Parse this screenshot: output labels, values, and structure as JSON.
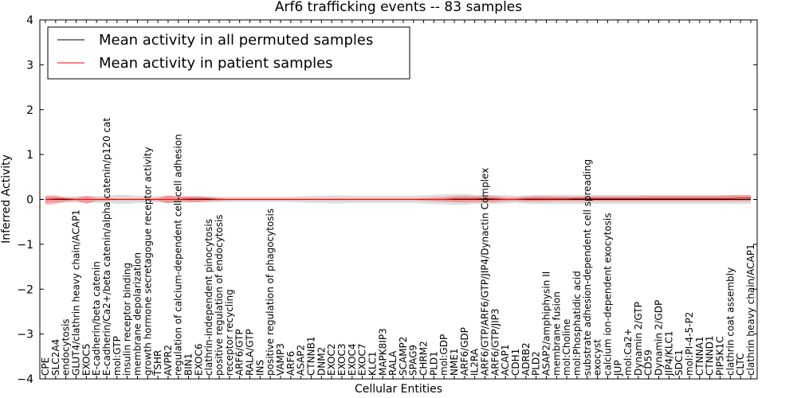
{
  "chart_data": {
    "type": "line",
    "title": "Arf6 trafficking events -- 83 samples",
    "xlabel": "Cellular Entities",
    "ylabel": "Inferred Activity",
    "ylim": [
      -4,
      4
    ],
    "yticks": [
      -4,
      -3,
      -2,
      -1,
      0,
      1,
      2,
      3,
      4
    ],
    "ytick_labels": [
      "−4",
      "−3",
      "−2",
      "−1",
      "0",
      "1",
      "2",
      "3",
      "4"
    ],
    "grid": false,
    "legend_position": "top-left",
    "categories": [
      "CPE",
      "SLC2A4",
      "endocytosis",
      "GLUT4/clathrin heavy chain/ACAP1",
      "EXOC5",
      "E-cadherin/beta catenin",
      "E-cadherin/Ca2+/beta catenin/alpha catenin/p120 cat",
      "mol:GTP",
      "insulin receptor binding",
      "membrane depolarization",
      "growth hormone secretagogue receptor activity",
      "TSHR",
      "AVPR2",
      "regulation of calcium-dependent cell-cell adhesion",
      "BIN1",
      "EXOC6",
      "clathrin-independent pinocytosis",
      "positive regulation of endocytosis",
      "receptor recycling",
      "ARF6/GTP",
      "RALA/GTP",
      "INS",
      "positive regulation of phagocytosis",
      "VAMP3",
      "ARF6",
      "ASAP2",
      "CTNNB1",
      "DNM2",
      "EXOC2",
      "EXOC3",
      "EXOC4",
      "EXOC7",
      "KLC1",
      "MAPK8IP3",
      "RALA",
      "SCAMP2",
      "SPAG9",
      "CHRM2",
      "PLD1",
      "mol:GDP",
      "NME1",
      "ARF6/GDP",
      "IL2RA",
      "ARF6/GTP/ARF6/GTP/JIP4/Dynactin Complex",
      "ARF6/GTP/JIP3",
      "ACAP1",
      "CDH1",
      "ADRB2",
      "PLD2",
      "ASAP2/amphiphysin II",
      "membrane fusion",
      "mol:Choline",
      "mol:Phosphatidic acid",
      "substrate adhesion-dependent cell spreading",
      "exocyst",
      "calcium ion-dependent exocytosis",
      "JUP",
      "mol:Ca2+",
      "Dynamin 2/GTP",
      "CD59",
      "Dynamin 2/GDP",
      "JIP4/KLC1",
      "SDC1",
      "mol:PI-4-5-P2",
      "CTNNA1",
      "CTNND1",
      "PIP5K1C",
      "clathrin coat assembly",
      "CLTC",
      "clathrin heavy chain/ACAP1"
    ],
    "series": [
      {
        "name": "Mean activity in all permuted samples",
        "color": "#000000",
        "values": [
          0,
          0,
          0,
          0,
          0,
          0,
          0,
          0,
          0,
          0,
          0,
          0,
          0,
          0,
          0,
          0,
          0,
          0,
          0,
          0,
          0,
          0,
          0,
          0,
          0,
          0,
          0,
          0,
          0,
          0,
          0,
          0,
          0,
          0,
          0,
          0,
          0,
          0,
          0,
          0,
          0,
          0,
          0,
          0,
          0,
          0,
          0,
          0,
          0,
          0,
          0,
          0,
          0,
          0,
          0,
          0,
          0,
          0,
          0,
          0,
          0,
          0,
          0,
          0,
          0,
          0,
          0,
          0,
          0,
          0
        ],
        "band_lower": [
          -0.06,
          -0.06,
          -0.07,
          -0.07,
          -0.07,
          -0.08,
          -0.08,
          -0.1,
          -0.1,
          -0.08,
          -0.07,
          -0.07,
          -0.08,
          -0.08,
          -0.07,
          -0.07,
          -0.07,
          -0.06,
          -0.06,
          -0.06,
          -0.06,
          -0.06,
          -0.06,
          -0.06,
          -0.06,
          -0.07,
          -0.08,
          -0.08,
          -0.09,
          -0.09,
          -0.08,
          -0.08,
          -0.08,
          -0.08,
          -0.08,
          -0.08,
          -0.08,
          -0.09,
          -0.1,
          -0.11,
          -0.12,
          -0.12,
          -0.1,
          -0.1,
          -0.1,
          -0.09,
          -0.08,
          -0.09,
          -0.1,
          -0.1,
          -0.1,
          -0.1,
          -0.1,
          -0.1,
          -0.1,
          -0.1,
          -0.1,
          -0.1,
          -0.1,
          -0.1,
          -0.1,
          -0.1,
          -0.1,
          -0.1,
          -0.1,
          -0.1,
          -0.1,
          -0.1,
          -0.1,
          -0.1
        ],
        "band_upper": [
          0.06,
          0.06,
          0.07,
          0.07,
          0.07,
          0.08,
          0.08,
          0.1,
          0.1,
          0.08,
          0.07,
          0.07,
          0.08,
          0.08,
          0.07,
          0.07,
          0.07,
          0.06,
          0.06,
          0.06,
          0.06,
          0.06,
          0.06,
          0.06,
          0.06,
          0.07,
          0.08,
          0.08,
          0.09,
          0.09,
          0.08,
          0.08,
          0.08,
          0.08,
          0.08,
          0.08,
          0.08,
          0.09,
          0.1,
          0.11,
          0.12,
          0.12,
          0.1,
          0.1,
          0.1,
          0.09,
          0.08,
          0.09,
          0.1,
          0.1,
          0.1,
          0.1,
          0.1,
          0.1,
          0.1,
          0.1,
          0.1,
          0.1,
          0.1,
          0.1,
          0.1,
          0.1,
          0.1,
          0.1,
          0.1,
          0.1,
          0.1,
          0.1,
          0.1,
          0.1
        ]
      },
      {
        "name": "Mean activity in patient samples",
        "color": "#ff0000",
        "values": [
          0,
          0.01,
          0.01,
          0,
          0,
          0,
          0,
          0,
          0,
          0,
          0,
          0,
          0,
          0,
          0.01,
          0.01,
          0.01,
          0,
          0,
          0,
          0,
          0,
          0,
          0,
          0,
          0,
          0,
          0,
          0,
          0,
          0,
          0,
          0,
          0,
          0,
          0,
          0,
          0,
          0,
          0,
          0.01,
          0.01,
          0.01,
          0.02,
          0.01,
          0,
          0,
          0.01,
          0.01,
          0.01,
          0.01,
          0.01,
          0.02,
          0.02,
          0.02,
          0.02,
          0.02,
          0.02,
          0.02,
          0.02,
          0.02,
          0.02,
          0.02,
          0.02,
          0.02,
          0.02,
          0.02,
          0.02,
          0.03,
          0.03
        ],
        "band_lower": [
          -0.12,
          -0.1,
          -0.05,
          -0.03,
          -0.1,
          -0.03,
          -0.03,
          -0.02,
          -0.02,
          -0.02,
          -0.02,
          -0.03,
          -0.09,
          -0.04,
          -0.06,
          -0.06,
          -0.04,
          -0.03,
          -0.02,
          -0.02,
          -0.02,
          -0.02,
          -0.02,
          -0.02,
          -0.02,
          -0.02,
          -0.02,
          -0.02,
          -0.02,
          -0.02,
          -0.02,
          -0.02,
          -0.02,
          -0.02,
          -0.02,
          -0.02,
          -0.02,
          -0.03,
          -0.04,
          -0.05,
          -0.06,
          -0.07,
          -0.06,
          -0.06,
          -0.06,
          -0.04,
          -0.03,
          -0.05,
          -0.05,
          -0.05,
          -0.04,
          -0.04,
          -0.04,
          -0.04,
          -0.04,
          -0.04,
          -0.04,
          -0.04,
          -0.04,
          -0.04,
          -0.04,
          -0.04,
          -0.04,
          -0.04,
          -0.04,
          -0.04,
          -0.04,
          -0.04,
          -0.04,
          -0.04
        ],
        "band_upper": [
          0.08,
          0.09,
          0.03,
          0.03,
          0.08,
          0.03,
          0.03,
          0.02,
          0.02,
          0.02,
          0.02,
          0.03,
          0.09,
          0.06,
          0.07,
          0.07,
          0.05,
          0.03,
          0.02,
          0.02,
          0.02,
          0.02,
          0.02,
          0.02,
          0.02,
          0.02,
          0.02,
          0.02,
          0.02,
          0.02,
          0.02,
          0.02,
          0.02,
          0.02,
          0.02,
          0.02,
          0.02,
          0.03,
          0.04,
          0.05,
          0.07,
          0.08,
          0.07,
          0.08,
          0.07,
          0.04,
          0.04,
          0.06,
          0.07,
          0.07,
          0.06,
          0.06,
          0.06,
          0.07,
          0.07,
          0.07,
          0.07,
          0.07,
          0.07,
          0.08,
          0.08,
          0.08,
          0.08,
          0.08,
          0.08,
          0.08,
          0.08,
          0.09,
          0.09,
          0.09
        ]
      }
    ]
  }
}
